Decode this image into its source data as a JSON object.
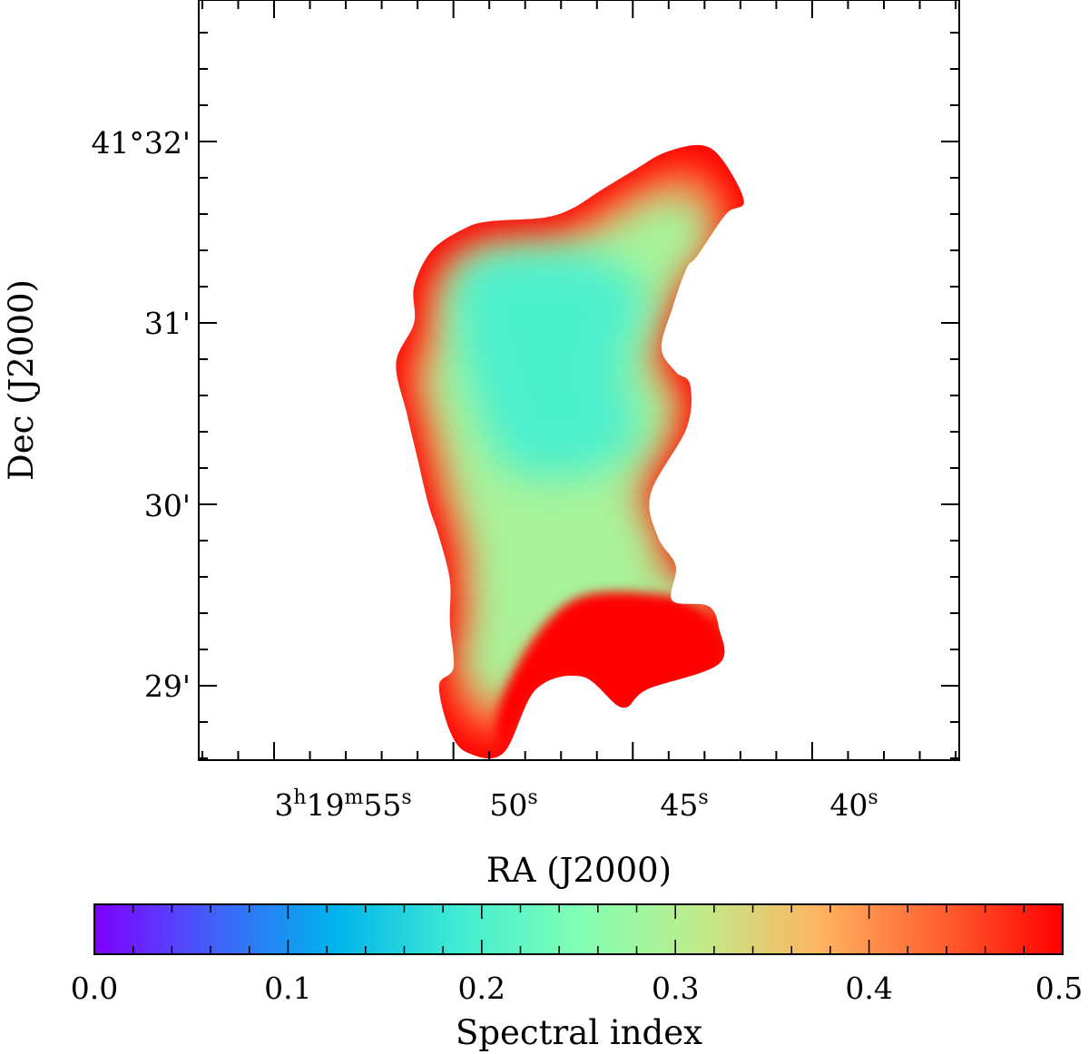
{
  "chart_data": {
    "type": "heatmap",
    "xlabel": "RA (J2000)",
    "ylabel": "Dec (J2000)",
    "colorbar_label": "Spectral index",
    "colormap": "rainbow",
    "x_ticks": [
      {
        "value_s": 55,
        "h": "3",
        "m": "19",
        "s": "55",
        "sup_h": "h",
        "sup_m": "m",
        "sup_s": "s"
      },
      {
        "value_s": 50,
        "s": "50",
        "sup_s": "s"
      },
      {
        "value_s": 45,
        "s": "45",
        "sup_s": "s"
      },
      {
        "value_s": 40,
        "s": "40",
        "sup_s": "s"
      }
    ],
    "y_ticks": [
      {
        "value_arcmin": 32,
        "label": "41°32'"
      },
      {
        "value_arcmin": 31,
        "label": "31'"
      },
      {
        "value_arcmin": 30,
        "label": "30'"
      },
      {
        "value_arcmin": 29,
        "label": "29'"
      }
    ],
    "xlim_s": [
      57.1,
      35.9
    ],
    "ylim_arcmin": [
      28.59,
      32.78
    ],
    "colorbar_range": [
      0.0,
      0.5
    ],
    "colorbar_ticks": [
      "0.0",
      "0.1",
      "0.2",
      "0.3",
      "0.4",
      "0.5"
    ],
    "colorbar_stops": [
      "#7f00ff",
      "#4062fa",
      "#00b4ec",
      "#40ecd3",
      "#80ffb4",
      "#bfec8b",
      "#ffb360",
      "#ff6030",
      "#ff0000"
    ],
    "core_spectral_index": 0.2,
    "edge_spectral_index": 0.5,
    "outline": [
      [
        49.6,
        28.63
      ],
      [
        48.6,
        28.63
      ],
      [
        47.7,
        28.98
      ],
      [
        46.4,
        29.05
      ],
      [
        45.3,
        28.88
      ],
      [
        44.6,
        28.98
      ],
      [
        42.6,
        29.12
      ],
      [
        42.6,
        29.32
      ],
      [
        42.9,
        29.44
      ],
      [
        43.9,
        29.47
      ],
      [
        43.8,
        29.66
      ],
      [
        44.3,
        29.82
      ],
      [
        44.5,
        30.06
      ],
      [
        43.5,
        30.42
      ],
      [
        43.4,
        30.66
      ],
      [
        43.8,
        30.73
      ],
      [
        44.2,
        30.86
      ],
      [
        43.9,
        31.08
      ],
      [
        43.5,
        31.3
      ],
      [
        43.2,
        31.37
      ],
      [
        42.4,
        31.6
      ],
      [
        41.9,
        31.67
      ],
      [
        42.5,
        31.9
      ],
      [
        43.1,
        31.98
      ],
      [
        44.1,
        31.94
      ],
      [
        44.9,
        31.85
      ],
      [
        45.9,
        31.73
      ],
      [
        46.7,
        31.63
      ],
      [
        47.5,
        31.58
      ],
      [
        49.0,
        31.56
      ],
      [
        49.7,
        31.52
      ],
      [
        50.6,
        31.4
      ],
      [
        51.1,
        31.2
      ],
      [
        51.1,
        31.0
      ],
      [
        51.6,
        30.78
      ],
      [
        51.3,
        30.5
      ],
      [
        51.0,
        30.25
      ],
      [
        50.7,
        30.0
      ],
      [
        50.4,
        29.82
      ],
      [
        50.1,
        29.58
      ],
      [
        50.1,
        29.35
      ],
      [
        50.0,
        29.1
      ],
      [
        50.4,
        29.0
      ],
      [
        50.1,
        28.75
      ]
    ],
    "core": [
      [
        46.8,
        30.15
      ],
      [
        45.4,
        30.25
      ],
      [
        44.8,
        30.4
      ],
      [
        45.1,
        30.6
      ],
      [
        45.2,
        30.78
      ],
      [
        44.8,
        31.02
      ],
      [
        44.7,
        31.2
      ],
      [
        46.2,
        31.38
      ],
      [
        48.3,
        31.4
      ],
      [
        49.8,
        31.32
      ],
      [
        49.9,
        31.06
      ],
      [
        49.7,
        30.76
      ],
      [
        49.2,
        30.45
      ],
      [
        48.5,
        30.2
      ]
    ],
    "hot_region": [
      [
        46.3,
        29.5
      ],
      [
        44.1,
        29.5
      ],
      [
        43.1,
        29.42
      ],
      [
        42.5,
        29.28
      ],
      [
        42.6,
        29.12
      ],
      [
        43.7,
        28.95
      ],
      [
        45.3,
        28.87
      ],
      [
        46.5,
        29.03
      ],
      [
        47.5,
        28.98
      ],
      [
        48.6,
        28.66
      ],
      [
        48.7,
        28.9
      ],
      [
        47.6,
        29.3
      ]
    ]
  }
}
